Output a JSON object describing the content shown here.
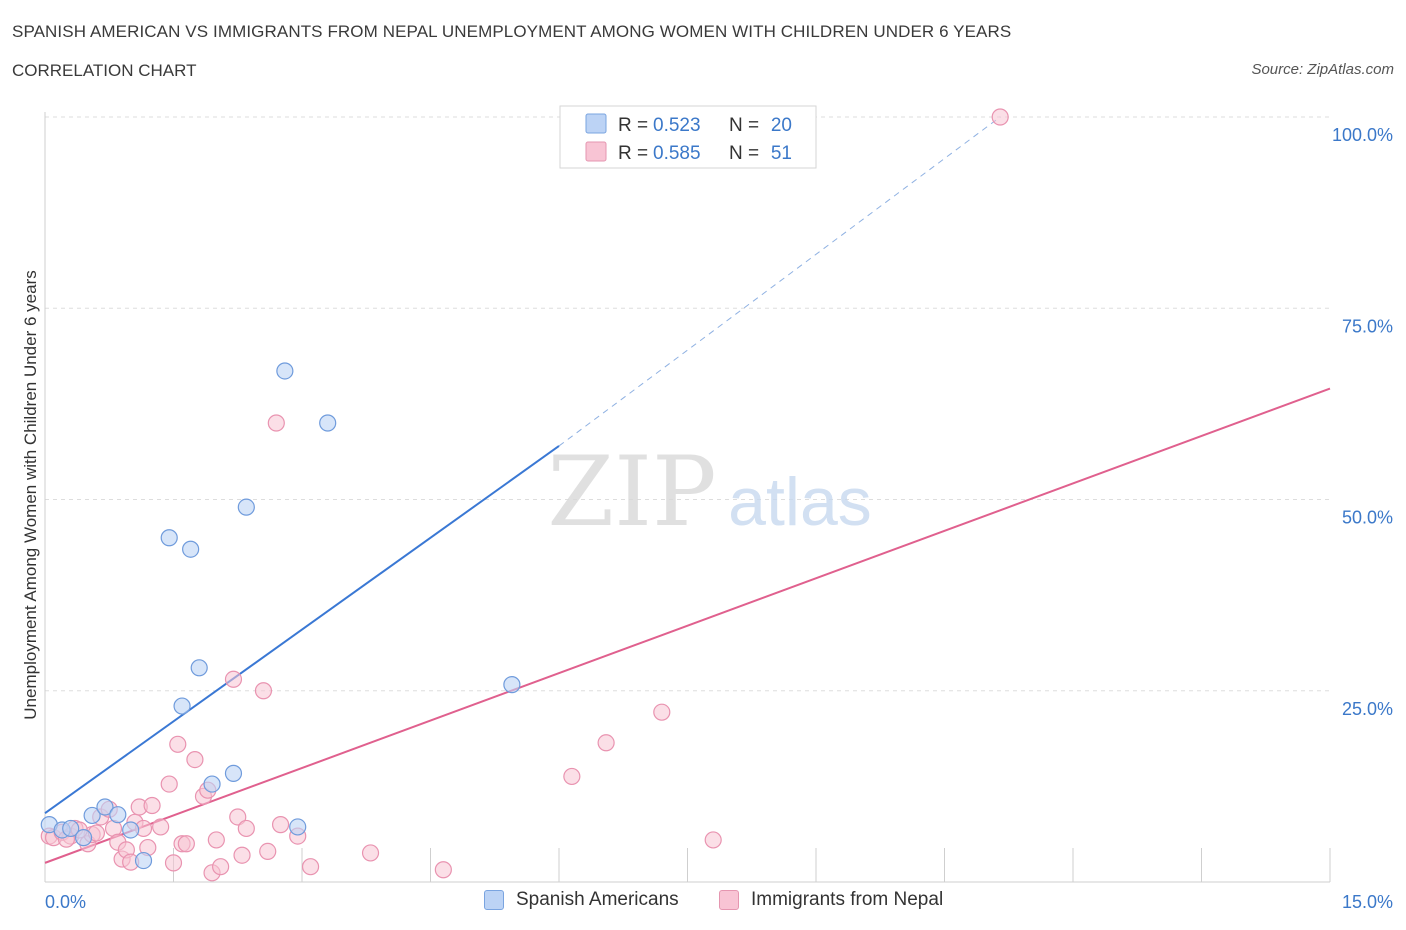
{
  "header": {
    "title": "SPANISH AMERICAN VS IMMIGRANTS FROM NEPAL UNEMPLOYMENT AMONG WOMEN WITH CHILDREN UNDER 6 YEARS",
    "subtitle": "CORRELATION CHART",
    "source": "Source: ZipAtlas.com"
  },
  "watermark": {
    "zip": "ZIP",
    "atlas": "atlas"
  },
  "colors": {
    "blue": "#3a78d4",
    "blue_fill": "#bcd3f5",
    "pink": "#e0608e",
    "pink_fill": "#f8c4d4",
    "axis_text": "#3b78c9",
    "grid": "#dddddd"
  },
  "stats": {
    "blue": {
      "r_label": "R =",
      "r_value": "0.523",
      "n_label": "N =",
      "n_value": "20"
    },
    "pink": {
      "r_label": "R =",
      "r_value": "0.585",
      "n_label": "N =",
      "n_value": "51"
    }
  },
  "chart_data": {
    "type": "scatter",
    "title": "SPANISH AMERICAN VS IMMIGRANTS FROM NEPAL UNEMPLOYMENT AMONG WOMEN WITH CHILDREN UNDER 6 YEARS",
    "subtitle": "CORRELATION CHART",
    "xlabel": "",
    "ylabel": "Unemployment Among Women with Children Under 6 years",
    "xlim": [
      0,
      15
    ],
    "ylim": [
      0,
      100
    ],
    "x_tick_labels": [
      "0.0%",
      "15.0%"
    ],
    "y_tick_labels": [
      "25.0%",
      "50.0%",
      "75.0%",
      "100.0%"
    ],
    "y_ticks": [
      25,
      50,
      75,
      100
    ],
    "grid": true,
    "legend_position": "bottom-center",
    "series": [
      {
        "name": "Spanish Americans",
        "color": "#3a78d4",
        "r": 0.523,
        "n": 20,
        "trend": {
          "x0": 0,
          "y0": 9.0,
          "x1": 6.0,
          "y1": 57.0,
          "dashed_to_x": 11.15,
          "dashed_to_y": 100
        },
        "points": [
          [
            0.05,
            7.5
          ],
          [
            0.2,
            6.8
          ],
          [
            0.3,
            7.0
          ],
          [
            0.45,
            5.8
          ],
          [
            0.55,
            8.7
          ],
          [
            0.7,
            9.8
          ],
          [
            0.85,
            8.8
          ],
          [
            1.0,
            6.8
          ],
          [
            1.15,
            2.8
          ],
          [
            1.45,
            45.0
          ],
          [
            1.6,
            23.0
          ],
          [
            1.7,
            43.5
          ],
          [
            1.8,
            28.0
          ],
          [
            1.95,
            12.8
          ],
          [
            2.2,
            14.2
          ],
          [
            2.35,
            49.0
          ],
          [
            2.8,
            66.8
          ],
          [
            2.95,
            7.2
          ],
          [
            3.3,
            60.0
          ],
          [
            5.45,
            25.8
          ]
        ]
      },
      {
        "name": "Immigrants from Nepal",
        "color": "#e0608e",
        "r": 0.585,
        "n": 51,
        "trend": {
          "x0": 0,
          "y0": 2.5,
          "x1": 15.0,
          "y1": 64.5
        },
        "points": [
          [
            0.05,
            6.0
          ],
          [
            0.1,
            5.8
          ],
          [
            0.2,
            6.5
          ],
          [
            0.3,
            6.0
          ],
          [
            0.35,
            7.0
          ],
          [
            0.5,
            5.0
          ],
          [
            0.55,
            6.2
          ],
          [
            0.65,
            8.5
          ],
          [
            0.75,
            9.5
          ],
          [
            0.8,
            7.0
          ],
          [
            0.85,
            5.2
          ],
          [
            0.9,
            3.0
          ],
          [
            0.95,
            4.2
          ],
          [
            1.05,
            7.8
          ],
          [
            1.1,
            9.8
          ],
          [
            1.15,
            7.0
          ],
          [
            1.2,
            4.5
          ],
          [
            1.25,
            10.0
          ],
          [
            1.35,
            7.2
          ],
          [
            1.45,
            12.8
          ],
          [
            1.5,
            2.5
          ],
          [
            1.55,
            18.0
          ],
          [
            1.6,
            5.0
          ],
          [
            1.65,
            5.0
          ],
          [
            1.75,
            16.0
          ],
          [
            1.85,
            11.2
          ],
          [
            1.9,
            12.0
          ],
          [
            1.95,
            1.2
          ],
          [
            2.0,
            5.5
          ],
          [
            2.2,
            26.5
          ],
          [
            2.25,
            8.5
          ],
          [
            2.3,
            3.5
          ],
          [
            2.35,
            7.0
          ],
          [
            2.55,
            25.0
          ],
          [
            2.6,
            4.0
          ],
          [
            2.75,
            7.5
          ],
          [
            2.95,
            6.0
          ],
          [
            3.1,
            2.0
          ],
          [
            3.8,
            3.8
          ],
          [
            4.65,
            1.6
          ],
          [
            6.15,
            13.8
          ],
          [
            6.55,
            18.2
          ],
          [
            7.2,
            22.2
          ],
          [
            7.8,
            5.5
          ],
          [
            2.7,
            60.0
          ],
          [
            11.15,
            100.0
          ],
          [
            0.4,
            6.8
          ],
          [
            0.6,
            6.4
          ],
          [
            1.0,
            2.6
          ],
          [
            2.05,
            2.0
          ],
          [
            0.25,
            5.6
          ]
        ]
      }
    ]
  }
}
